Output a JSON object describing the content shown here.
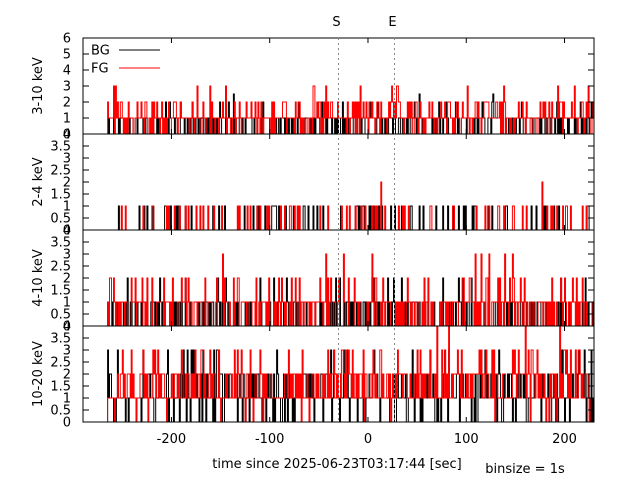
{
  "markers": [
    {
      "label": "S",
      "t": -30
    },
    {
      "label": "E",
      "t": 27
    }
  ],
  "xlabel": "time since 2025-06-23T03:17:44 [sec]",
  "binsize_label": "binsize = 1s",
  "legend": [
    {
      "name": "BG",
      "color": "#000000"
    },
    {
      "name": "FG",
      "color": "#ff0000"
    }
  ],
  "chart_data": [
    {
      "type": "line",
      "panel": "3-10 keV",
      "ylabel": "3-10 keV",
      "xlim": [
        -290,
        230
      ],
      "ylim": [
        0,
        6
      ],
      "yticks": [
        0,
        1,
        2,
        3,
        4,
        5,
        6
      ],
      "xticks": [
        -200,
        -100,
        0,
        100,
        200
      ],
      "legend": "top-left",
      "series": [
        {
          "name": "BG",
          "color": "#000000",
          "note": "1-s binned counts, mostly 0-1, occasional 2",
          "peaks": [
            {
              "t": -137,
              "v": 2.5
            },
            {
              "t": 2,
              "v": 2
            },
            {
              "t": 52,
              "v": 2.5
            },
            {
              "t": 127,
              "v": 2.5
            }
          ]
        },
        {
          "name": "FG",
          "color": "#ff0000",
          "note": "1-s binned counts, mostly 0-2",
          "peaks": [
            {
              "t": -145,
              "v": 3
            },
            {
              "t": -43,
              "v": 3
            },
            {
              "t": 193,
              "v": 3
            },
            {
              "t": 210,
              "v": 3
            }
          ]
        }
      ]
    },
    {
      "type": "line",
      "panel": "2-4 keV",
      "ylabel": "2-4 keV",
      "xlim": [
        -290,
        230
      ],
      "ylim": [
        0,
        4
      ],
      "yticks": [
        0,
        0.5,
        1,
        1.5,
        2,
        2.5,
        3,
        3.5
      ],
      "xticks": [
        -200,
        -100,
        0,
        100,
        200
      ],
      "series": [
        {
          "name": "BG",
          "color": "#000000",
          "note": "sparse single counts"
        },
        {
          "name": "FG",
          "color": "#ff0000",
          "note": "sparse single counts",
          "peaks": [
            {
              "t": 13,
              "v": 2
            },
            {
              "t": 177,
              "v": 2
            }
          ]
        }
      ]
    },
    {
      "type": "line",
      "panel": "4-10 keV",
      "ylabel": "4-10 keV",
      "xlim": [
        -290,
        230
      ],
      "ylim": [
        0,
        4
      ],
      "yticks": [
        0,
        0.5,
        1,
        1.5,
        2,
        2.5,
        3,
        3.5
      ],
      "xticks": [
        -200,
        -100,
        0,
        100,
        200
      ],
      "series": [
        {
          "name": "BG",
          "color": "#000000",
          "note": "counts 0-1, occasional 2"
        },
        {
          "name": "FG",
          "color": "#ff0000",
          "note": "counts 0-2",
          "peaks": [
            {
              "t": -148,
              "v": 3
            },
            {
              "t": -43,
              "v": 3
            },
            {
              "t": 147,
              "v": 3
            }
          ]
        }
      ]
    },
    {
      "type": "line",
      "panel": "10-20 keV",
      "ylabel": "10-20 keV",
      "xlim": [
        -290,
        230
      ],
      "ylim": [
        0,
        4
      ],
      "yticks": [
        0,
        0.5,
        1,
        1.5,
        2,
        2.5,
        3,
        3.5
      ],
      "xticks": [
        -200,
        -100,
        0,
        100,
        200
      ],
      "series": [
        {
          "name": "BG",
          "color": "#000000",
          "note": "counts 0-2, occasional 3"
        },
        {
          "name": "FG",
          "color": "#ff0000",
          "note": "counts 0-3, frequent 3-4",
          "peaks": [
            {
              "t": 70,
              "v": 4
            },
            {
              "t": 82,
              "v": 4
            },
            {
              "t": 160,
              "v": 4
            },
            {
              "t": 195,
              "v": 4
            }
          ]
        }
      ]
    }
  ]
}
